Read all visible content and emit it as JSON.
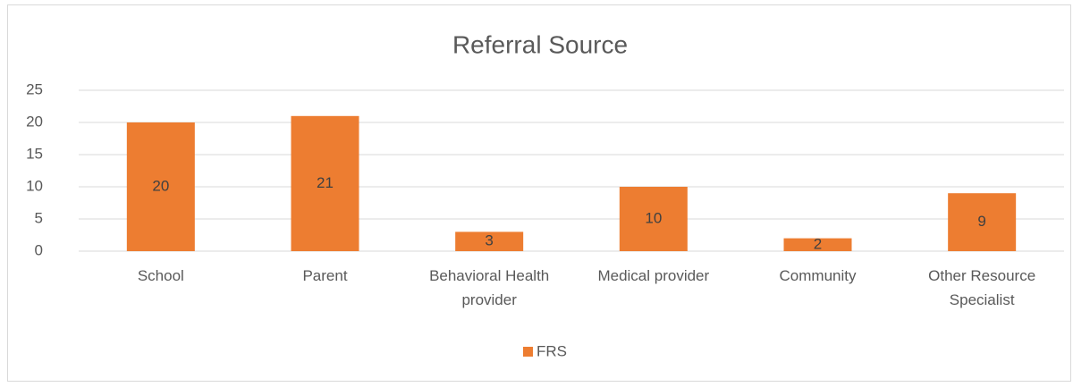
{
  "chart_data": {
    "type": "bar",
    "title": "Referral Source",
    "categories": [
      "School",
      "Parent",
      "Behavioral Health provider",
      "Medical provider",
      "Community",
      "Other Resource Specialist"
    ],
    "series": [
      {
        "name": "FRS",
        "color": "#ED7D31",
        "values": [
          20,
          21,
          3,
          10,
          2,
          9
        ]
      }
    ],
    "ylim": [
      0,
      25
    ],
    "yticks": [
      0,
      5,
      10,
      15,
      20,
      25
    ],
    "grid": true,
    "legend": "bottom",
    "data_labels": true
  }
}
